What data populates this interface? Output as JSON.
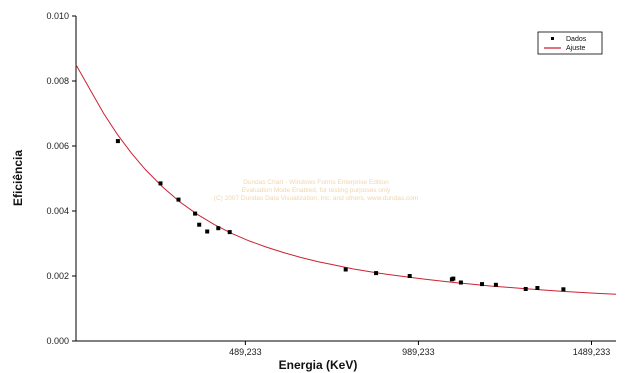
{
  "chart_data": {
    "type": "scatter",
    "title": "",
    "xlabel": "Energia (KeV)",
    "ylabel": "Eficiência",
    "xlim": [
      0,
      1560
    ],
    "ylim": [
      0,
      0.01
    ],
    "x_ticks": [
      489.233,
      989.233,
      1489.233
    ],
    "x_tick_labels": [
      "489,233",
      "989,233",
      "1489,233"
    ],
    "y_ticks": [
      0,
      0.002,
      0.004,
      0.006,
      0.008,
      0.01
    ],
    "y_tick_labels": [
      "0.000",
      "0.002",
      "0.004",
      "0.006",
      "0.008",
      "0.010"
    ],
    "legend_position": "top-right",
    "grid": false,
    "series": [
      {
        "name": "Dados",
        "kind": "points",
        "color": "#000000",
        "points": [
          [
            121,
            0.00615
          ],
          [
            244,
            0.00485
          ],
          [
            296,
            0.00435
          ],
          [
            344,
            0.00392
          ],
          [
            356,
            0.00358
          ],
          [
            379,
            0.00337
          ],
          [
            411,
            0.00347
          ],
          [
            444,
            0.00335
          ],
          [
            779,
            0.0022
          ],
          [
            867,
            0.00209
          ],
          [
            964,
            0.002
          ],
          [
            1086,
            0.0019
          ],
          [
            1090,
            0.00192
          ],
          [
            1112,
            0.0018
          ],
          [
            1173,
            0.00175
          ],
          [
            1213,
            0.00173
          ],
          [
            1299,
            0.0016
          ],
          [
            1333,
            0.00163
          ],
          [
            1408,
            0.00159
          ]
        ]
      },
      {
        "name": "Ajuste",
        "kind": "curve",
        "color": "#cc2233",
        "points": [
          [
            0,
            0.0085
          ],
          [
            40,
            0.00775
          ],
          [
            80,
            0.007
          ],
          [
            120,
            0.00635
          ],
          [
            160,
            0.00578
          ],
          [
            200,
            0.00528
          ],
          [
            250,
            0.00474
          ],
          [
            300,
            0.00428
          ],
          [
            350,
            0.0039
          ],
          [
            400,
            0.00358
          ],
          [
            450,
            0.00331
          ],
          [
            500,
            0.00308
          ],
          [
            550,
            0.00289
          ],
          [
            600,
            0.00272
          ],
          [
            650,
            0.00257
          ],
          [
            700,
            0.00244
          ],
          [
            750,
            0.00233
          ],
          [
            800,
            0.00222
          ],
          [
            850,
            0.00213
          ],
          [
            900,
            0.00205
          ],
          [
            950,
            0.00198
          ],
          [
            1000,
            0.00191
          ],
          [
            1050,
            0.00185
          ],
          [
            1100,
            0.00179
          ],
          [
            1150,
            0.00174
          ],
          [
            1200,
            0.00169
          ],
          [
            1250,
            0.00165
          ],
          [
            1300,
            0.00161
          ],
          [
            1350,
            0.00157
          ],
          [
            1400,
            0.00153
          ],
          [
            1450,
            0.0015
          ],
          [
            1500,
            0.00147
          ],
          [
            1560,
            0.00144
          ]
        ]
      }
    ],
    "watermark": [
      "Dundas Chart - Windows Forms Enterprise Edition",
      "Evaluation Mode Enabled, for testing purposes only",
      "(C) 2007 Dundas Data Visualization, Inc. and others, www.dundas.com"
    ]
  }
}
